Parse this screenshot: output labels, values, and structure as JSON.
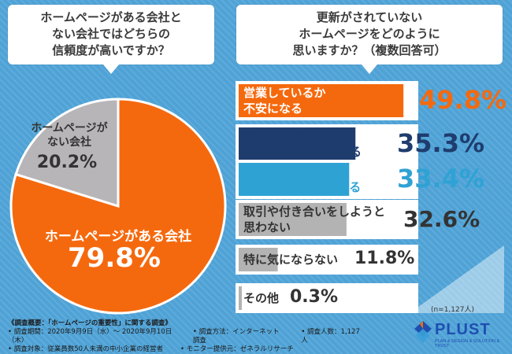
{
  "colors": {
    "accent": "#f5690e",
    "other": "#b7b5b8",
    "navy": "#1f3c6e",
    "teal": "#2fa2d4",
    "gray": "#b4b3b3",
    "background": "#4ea2d6"
  },
  "question_left": "ホームページがある会社と\nない会社ではどちらの\n信頼度が高いですか？",
  "question_right": "更新がされていない\nホームページをどのように\n思いますか？（複数回答可）",
  "chart_data": [
    {
      "type": "pie",
      "slices": [
        {
          "label": "ホームページがある会社",
          "value": 79.8,
          "display": "79.8%",
          "color": "#f5690e"
        },
        {
          "label": "ホームページが\nない会社",
          "value": 20.2,
          "display": "20.2%",
          "color": "#b7b5b8"
        }
      ]
    },
    {
      "type": "bar",
      "orientation": "horizontal",
      "categories": [
        "営業しているか\n不安になる",
        "載っている情報が\n正しいのか不安になる",
        "迅速な対応が\nできないように見える",
        "取引や付き合いをしようと\n思わない",
        "特に気にならない",
        "その他"
      ],
      "values": [
        49.8,
        35.3,
        33.4,
        32.6,
        11.8,
        0.3
      ],
      "display": [
        "49.8%",
        "35.3%",
        "33.4%",
        "32.6%",
        "11.8%",
        "0.3%"
      ],
      "colors": [
        "#f5690e",
        "#1f3c6e",
        "#2fa2d4",
        "#b4b3b3",
        "#b4b3b3",
        "#b4b3b3"
      ]
    }
  ],
  "sample_note": "(n=1,127人)",
  "survey": {
    "title": "《調査概要：「ホームページの重要性」に関する調査》",
    "period": "• 調査期間：2020年9月9日（水）〜 2020年9月10日（木）",
    "method": "• 調査方法：インターネット調査",
    "count": "• 調査人数：1,127人",
    "target": "• 調査対象：従業員数50人未満の中小企業の経営者",
    "provider": "• モニター提供元：ゼネラルリサーチ"
  },
  "logo": {
    "name": "PLUST",
    "tagline": "PLAN & DESIGN & SOLUTION & TRUST"
  }
}
